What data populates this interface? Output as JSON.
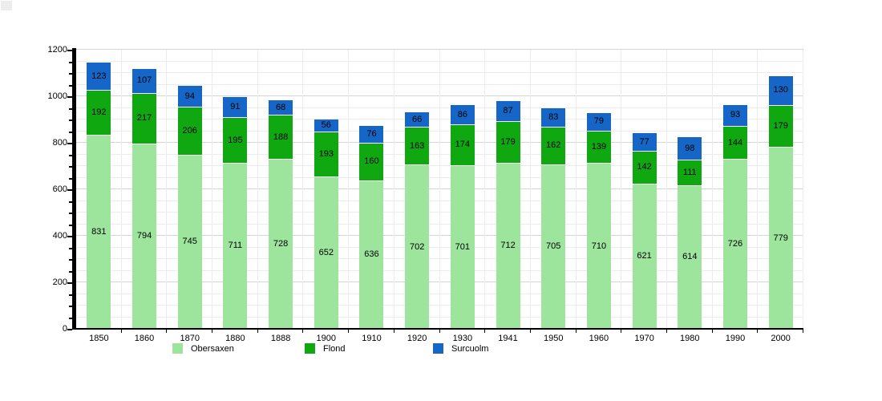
{
  "chart_data": {
    "type": "bar",
    "stacked": true,
    "title": "",
    "xlabel": "",
    "ylabel": "",
    "categories": [
      "1850",
      "1860",
      "1870",
      "1880",
      "1888",
      "1900",
      "1910",
      "1920",
      "1930",
      "1941",
      "1950",
      "1960",
      "1970",
      "1980",
      "1990",
      "2000"
    ],
    "series": [
      {
        "name": "Obersaxen",
        "color": "#9de49d",
        "values": [
          831,
          794,
          745,
          711,
          728,
          652,
          636,
          702,
          701,
          712,
          705,
          710,
          621,
          614,
          726,
          779
        ]
      },
      {
        "name": "Flond",
        "color": "#10a810",
        "values": [
          192,
          217,
          206,
          195,
          188,
          193,
          160,
          163,
          174,
          179,
          162,
          139,
          142,
          111,
          144,
          179
        ]
      },
      {
        "name": "Surcuolm",
        "color": "#1566c6",
        "values": [
          123,
          107,
          94,
          91,
          68,
          56,
          76,
          66,
          86,
          87,
          83,
          79,
          77,
          98,
          93,
          130
        ]
      }
    ],
    "ylim": [
      0,
      1200
    ],
    "y_major_ticks": [
      0,
      200,
      400,
      600,
      800,
      1000,
      1200
    ],
    "y_minor_step": 50,
    "grid": true,
    "legend_position": "bottom"
  },
  "legend": {
    "items": [
      {
        "label": "Obersaxen",
        "color": "#9de49d",
        "x": 215
      },
      {
        "label": "Flond",
        "color": "#10a810",
        "x": 380
      },
      {
        "label": "Surcuolm",
        "color": "#1566c6",
        "x": 540
      }
    ]
  },
  "colors": {
    "grid_minor": "#ececec",
    "grid_major": "#d5d5d5",
    "axis": "#000000",
    "background": "#ffffff"
  }
}
